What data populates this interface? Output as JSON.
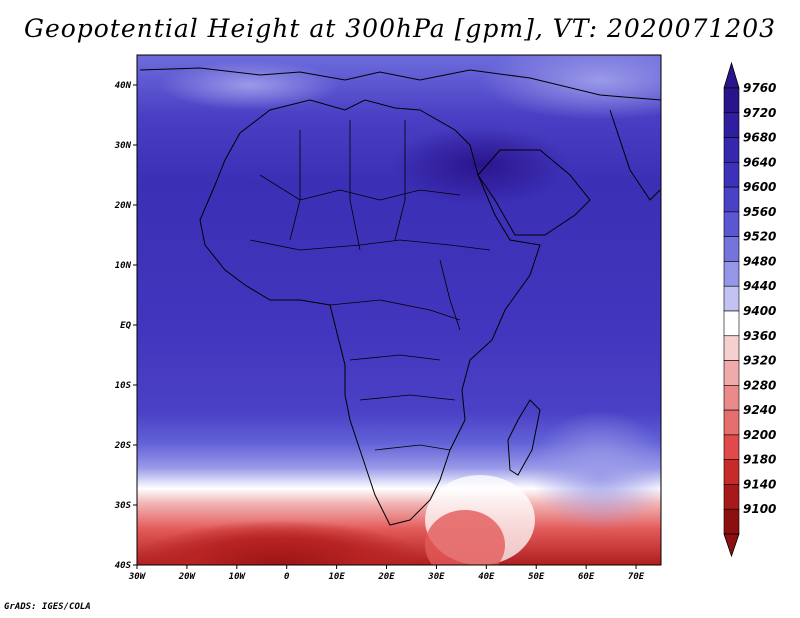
{
  "title": "Geopotential Height at 300hPa [gpm], VT: 2020071203",
  "credit": "GrADS: IGES/COLA",
  "map": {
    "lon_labels": [
      "30W",
      "20W",
      "10W",
      "0",
      "10E",
      "20E",
      "30E",
      "40E",
      "50E",
      "60E",
      "70E"
    ],
    "lat_labels": [
      "40N",
      "30N",
      "20N",
      "10N",
      "EQ",
      "10S",
      "20S",
      "30S",
      "40S"
    ],
    "lon_range": [
      -30,
      75
    ],
    "lat_range": [
      -40,
      45
    ]
  },
  "colorbar": {
    "levels": [
      "9760",
      "9720",
      "9680",
      "9640",
      "9600",
      "9560",
      "9520",
      "9480",
      "9440",
      "9400",
      "9360",
      "9320",
      "9280",
      "9240",
      "9200",
      "9180",
      "9140",
      "9100"
    ],
    "colors": [
      "#2a148c",
      "#2f1fa0",
      "#3527ae",
      "#3c31b9",
      "#4a41c6",
      "#5b56d2",
      "#7474dd",
      "#9696e8",
      "#c3c3f3",
      "#ffffff",
      "#f6d0d0",
      "#f1aaaa",
      "#eb8a8a",
      "#e66e6e",
      "#e04a4a",
      "#c82a2a",
      "#a81a1a",
      "#8c1010"
    ]
  }
}
